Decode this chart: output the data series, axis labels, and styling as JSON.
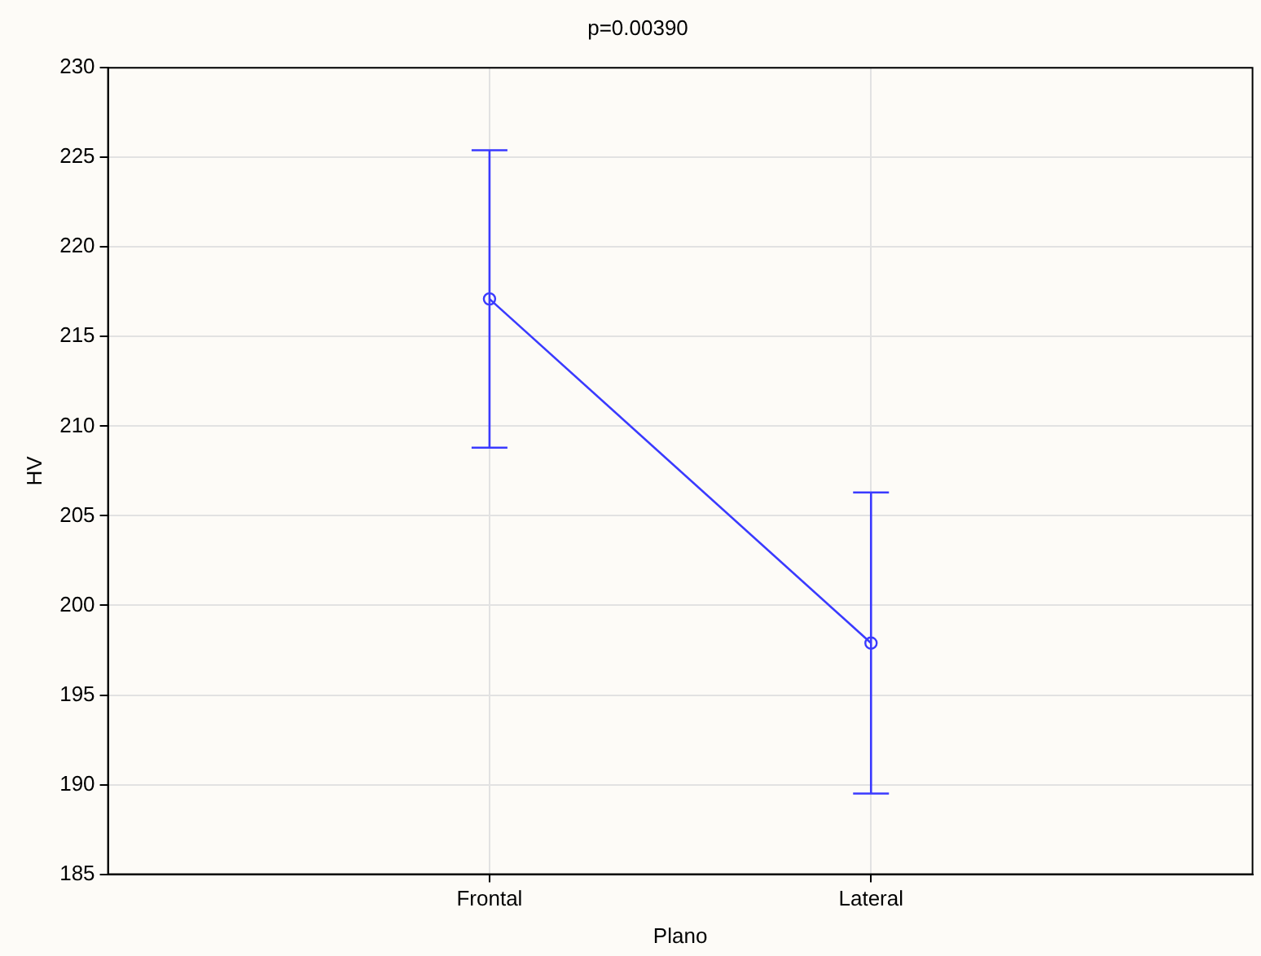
{
  "chart_data": {
    "type": "line",
    "title": "p=0.00390",
    "xlabel": "Plano",
    "ylabel": "HV",
    "categories": [
      "Frontal",
      "Lateral"
    ],
    "series": [
      {
        "color": "#3a3aff",
        "values": [
          217.1,
          197.9
        ],
        "errors": [
          8.3,
          8.4
        ]
      }
    ],
    "ylim": [
      185,
      230
    ],
    "yticks": [
      185,
      190,
      195,
      200,
      205,
      210,
      215,
      220,
      225,
      230
    ],
    "grid": true,
    "marker": "circle",
    "line_style": "solid",
    "legend": false
  }
}
